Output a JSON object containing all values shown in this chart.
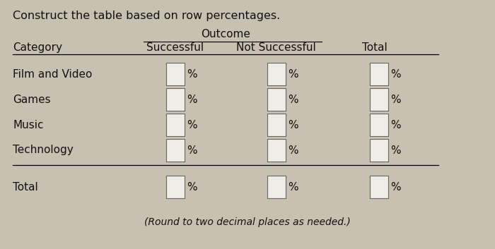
{
  "title": "Construct the table based on row percentages.",
  "outcome_label": "Outcome",
  "col_headers": [
    "Category",
    "Successful",
    "Not Successful",
    "Total"
  ],
  "rows": [
    "Film and Video",
    "Games",
    "Music",
    "Technology",
    "Total"
  ],
  "footnote": "(Round to two decimal places as needed.)",
  "bg_color": "#c8c0b0",
  "box_color": "#f0ede8",
  "box_border_color": "#666666",
  "text_color": "#111111",
  "title_fontsize": 11.5,
  "header_fontsize": 11,
  "body_fontsize": 11,
  "footnote_fontsize": 10
}
